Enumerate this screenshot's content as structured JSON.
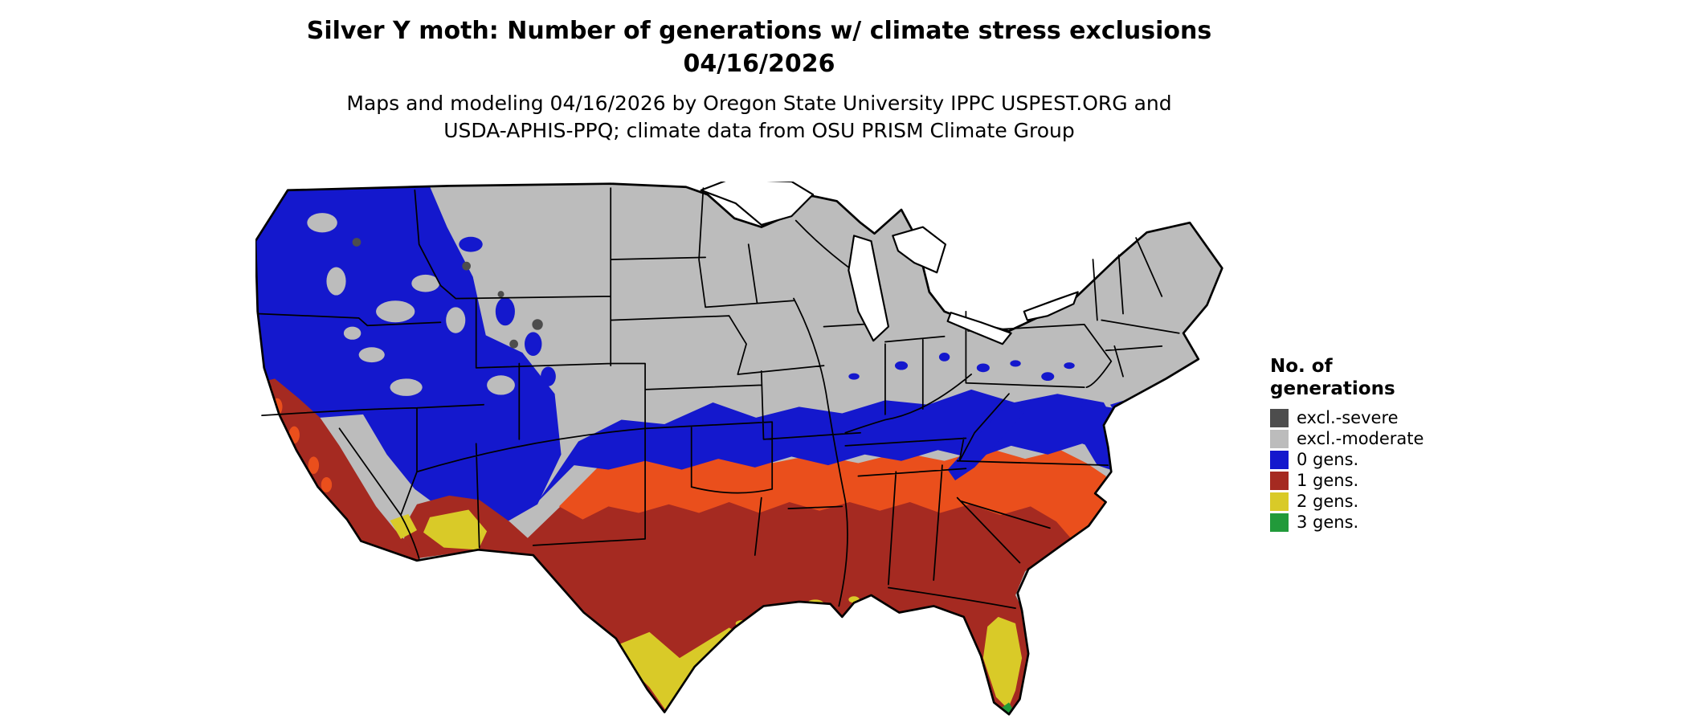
{
  "header": {
    "title": "Silver Y moth: Number of generations w/ climate stress exclusions",
    "date": "04/16/2026",
    "credits_line1": "Maps and modeling 04/16/2026 by Oregon State University IPPC USPEST.ORG and",
    "credits_line2": "USDA-APHIS-PPQ; climate data from OSU PRISM Climate Group"
  },
  "legend": {
    "title_line1": "No. of",
    "title_line2": "generations",
    "items": [
      {
        "label": "excl.-severe",
        "color_key": "severe"
      },
      {
        "label": "excl.-moderate",
        "color_key": "moderate"
      },
      {
        "label": "0 gens.",
        "color_key": "gen0"
      },
      {
        "label": "1 gens.",
        "color_key": "gen1"
      },
      {
        "label": "2 gens.",
        "color_key": "gen2"
      },
      {
        "label": "3 gens.",
        "color_key": "gen3"
      }
    ]
  },
  "colors": {
    "severe": "#4d4d4d",
    "moderate": "#bcbcbc",
    "gen0": "#1418cd",
    "gen1": "#a52a21",
    "gen1_hot": "#ea4f1c",
    "gen2": "#d9ca28",
    "gen3": "#219a3a",
    "water": "#ffffff",
    "line": "#000000"
  }
}
